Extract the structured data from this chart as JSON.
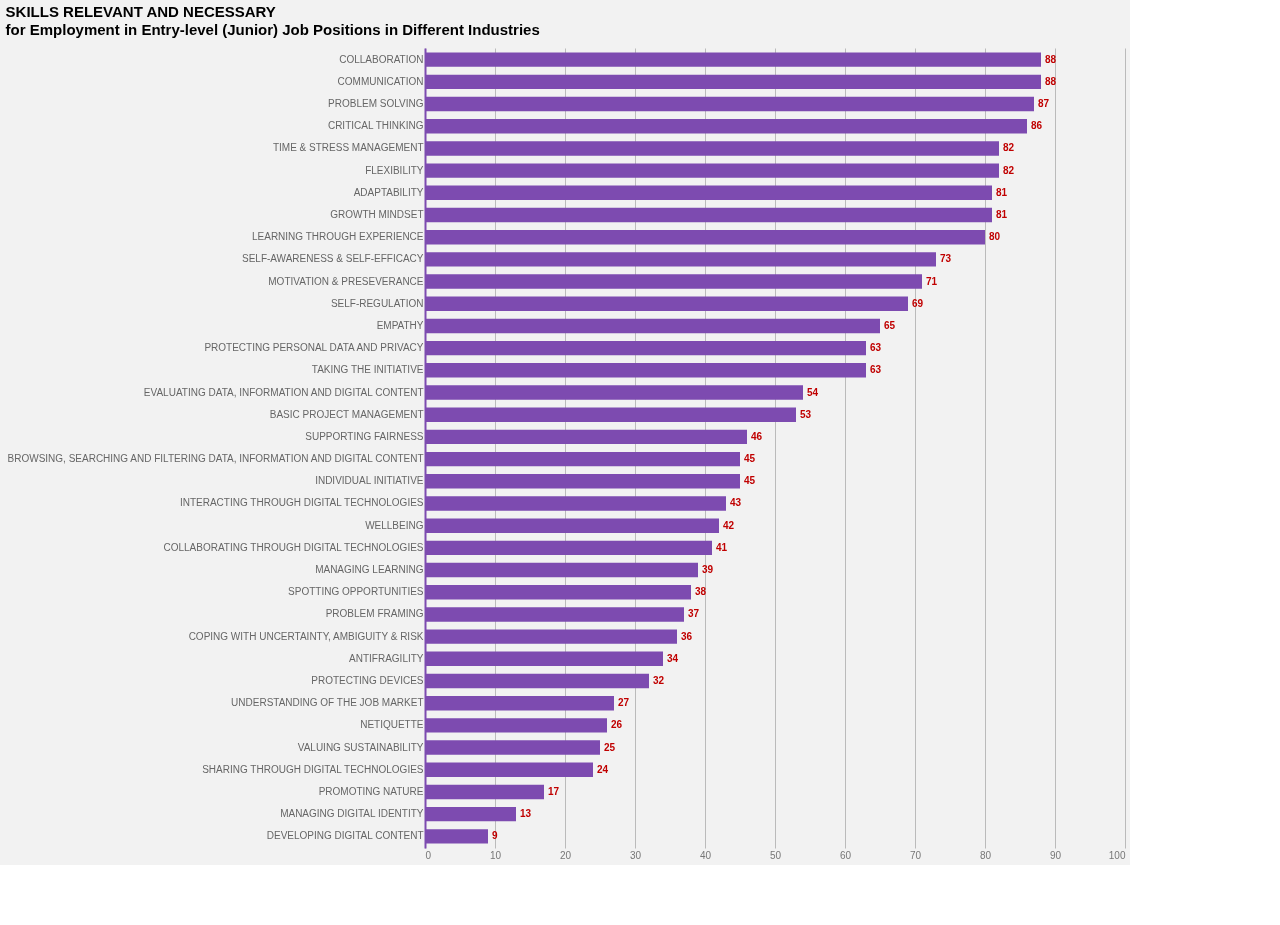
{
  "chart_data": {
    "type": "bar",
    "orientation": "horizontal",
    "title": "SKILLS RELEVANT AND NECESSARY",
    "subtitle": "for Employment in Entry-level (Junior) Job Positions in Different Industries",
    "categories": [
      "COLLABORATION",
      "COMMUNICATION",
      "PROBLEM SOLVING",
      "CRITICAL THINKING",
      "TIME & STRESS MANAGEMENT",
      "FLEXIBILITY",
      "ADAPTABILITY",
      "GROWTH MINDSET",
      "LEARNING THROUGH EXPERIENCE",
      "SELF-AWARENESS & SELF-EFFICACY",
      "MOTIVATION & PRESEVERANCE",
      "SELF-REGULATION",
      "EMPATHY",
      "PROTECTING PERSONAL DATA AND PRIVACY",
      "TAKING THE INITIATIVE",
      "EVALUATING DATA, INFORMATION AND DIGITAL CONTENT",
      "BASIC PROJECT MANAGEMENT",
      "SUPPORTING FAIRNESS",
      "BROWSING, SEARCHING AND FILTERING DATA, INFORMATION AND DIGITAL CONTENT",
      "INDIVIDUAL INITIATIVE",
      "INTERACTING THROUGH DIGITAL TECHNOLOGIES",
      "WELLBEING",
      "COLLABORATING THROUGH DIGITAL TECHNOLOGIES",
      "MANAGING LEARNING",
      "SPOTTING OPPORTUNITIES",
      "PROBLEM FRAMING",
      "COPING WITH UNCERTAINTY, AMBIGUITY & RISK",
      "ANTIFRAGILITY",
      "PROTECTING DEVICES",
      "UNDERSTANDING OF THE JOB MARKET",
      "NETIQUETTE",
      "VALUING SUSTAINABILITY",
      "SHARING THROUGH DIGITAL TECHNOLOGIES",
      "PROMOTING NATURE",
      "MANAGING DIGITAL IDENTITY",
      "DEVELOPING DIGITAL CONTENT"
    ],
    "values": [
      88,
      88,
      87,
      86,
      82,
      82,
      81,
      81,
      80,
      73,
      71,
      69,
      65,
      63,
      63,
      54,
      53,
      46,
      45,
      45,
      43,
      42,
      41,
      39,
      38,
      37,
      36,
      34,
      32,
      27,
      26,
      25,
      24,
      17,
      13,
      9
    ],
    "color": "#7d4bb0",
    "xlim": [
      0,
      100
    ],
    "xticks": [
      0,
      10,
      20,
      30,
      40,
      50,
      60,
      70,
      80,
      90,
      100
    ],
    "grid": "x",
    "data_labels": true
  }
}
